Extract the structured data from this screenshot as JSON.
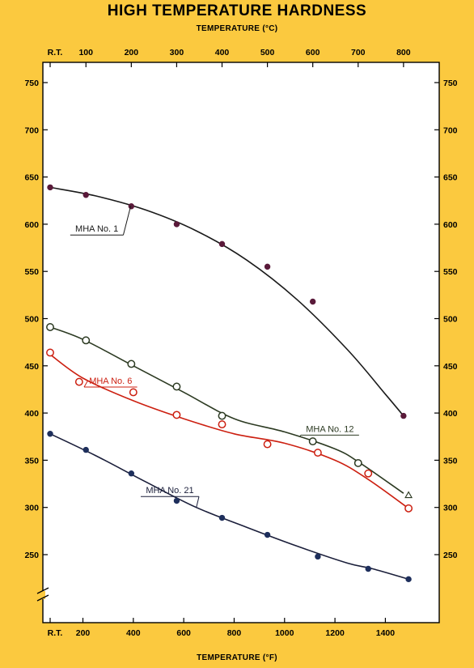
{
  "chart_data": {
    "type": "line",
    "title": "HIGH TEMPERATURE HARDNESS",
    "top_axis": {
      "label": "TEMPERATURE (°C)",
      "ticks": [
        {
          "label": "R.T.",
          "f": 70
        },
        {
          "label": "100",
          "f": 212
        },
        {
          "label": "200",
          "f": 392
        },
        {
          "label": "300",
          "f": 572
        },
        {
          "label": "400",
          "f": 752
        },
        {
          "label": "500",
          "f": 932
        },
        {
          "label": "600",
          "f": 1112
        },
        {
          "label": "700",
          "f": 1292
        },
        {
          "label": "800",
          "f": 1472
        }
      ]
    },
    "bottom_axis": {
      "label": "TEMPERATURE (°F)",
      "ticks": [
        {
          "label": "R.T.",
          "f": 70
        },
        {
          "label": "200",
          "f": 200
        },
        {
          "label": "400",
          "f": 400
        },
        {
          "label": "600",
          "f": 600
        },
        {
          "label": "800",
          "f": 800
        },
        {
          "label": "1000",
          "f": 1000
        },
        {
          "label": "1200",
          "f": 1200
        },
        {
          "label": "1400",
          "f": 1400
        }
      ]
    },
    "y_ticks": [
      250,
      300,
      350,
      400,
      450,
      500,
      550,
      600,
      650,
      700,
      750
    ],
    "xlim": [
      50,
      1520
    ],
    "ylim": [
      200,
      775
    ],
    "axis_break": true,
    "series": [
      {
        "name": "MHA No. 1",
        "color": "#1a1a1a",
        "point_color": "#5a1a3a",
        "marker": "filled-circle",
        "x": [
          70,
          212,
          392,
          572,
          752,
          932,
          1112,
          1472
        ],
        "y": [
          639,
          631,
          619,
          600,
          579,
          555,
          518,
          397
        ],
        "curve": [
          [
            70,
            639
          ],
          [
            250,
            630
          ],
          [
            450,
            615
          ],
          [
            650,
            593
          ],
          [
            850,
            562
          ],
          [
            1050,
            520
          ],
          [
            1250,
            467
          ],
          [
            1400,
            420
          ],
          [
            1472,
            397
          ]
        ],
        "label_at": [
          255,
          592
        ]
      },
      {
        "name": "MHA No. 12",
        "color": "#2c3a22",
        "point_color": "#2c3a22",
        "marker": "open-circle",
        "x": [
          70,
          212,
          392,
          572,
          752,
          1112,
          1292
        ],
        "y": [
          491,
          477,
          452,
          428,
          397,
          370,
          347
        ],
        "extra_marker": {
          "x": 1492,
          "y": 313,
          "shape": "triangle"
        },
        "curve": [
          [
            70,
            491
          ],
          [
            200,
            478
          ],
          [
            400,
            450
          ],
          [
            600,
            422
          ],
          [
            800,
            394
          ],
          [
            1000,
            380
          ],
          [
            1200,
            362
          ],
          [
            1300,
            347
          ],
          [
            1472,
            315
          ]
        ],
        "label_at": [
          1180,
          380
        ]
      },
      {
        "name": "MHA No. 6",
        "color": "#cc1f10",
        "point_color": "#cc1f10",
        "marker": "open-circle",
        "x": [
          70,
          185,
          400,
          572,
          752,
          932,
          1132,
          1332,
          1492
        ],
        "y": [
          464,
          433,
          422,
          398,
          388,
          367,
          358,
          336,
          299
        ],
        "curve": [
          [
            70,
            462
          ],
          [
            200,
            437
          ],
          [
            400,
            413
          ],
          [
            600,
            394
          ],
          [
            800,
            378
          ],
          [
            1000,
            368
          ],
          [
            1200,
            350
          ],
          [
            1330,
            330
          ],
          [
            1492,
            299
          ]
        ],
        "label_at": [
          310,
          431
        ]
      },
      {
        "name": "MHA No. 21",
        "color": "#1a1e3a",
        "point_color": "#1e2f5c",
        "marker": "filled-circle",
        "x": [
          70,
          212,
          392,
          572,
          752,
          932,
          1132,
          1332,
          1492
        ],
        "y": [
          378,
          361,
          336,
          307,
          289,
          271,
          248,
          235,
          224
        ],
        "curve": [
          [
            70,
            378
          ],
          [
            250,
            355
          ],
          [
            450,
            327
          ],
          [
            650,
            300
          ],
          [
            850,
            279
          ],
          [
            1050,
            259
          ],
          [
            1250,
            241
          ],
          [
            1350,
            235
          ],
          [
            1492,
            224
          ]
        ],
        "label_at": [
          545,
          315
        ]
      }
    ],
    "grid": false,
    "legend": "inline labels"
  },
  "colors": {
    "page_background": "#fbc93f",
    "plot_background": "#ffffff"
  }
}
